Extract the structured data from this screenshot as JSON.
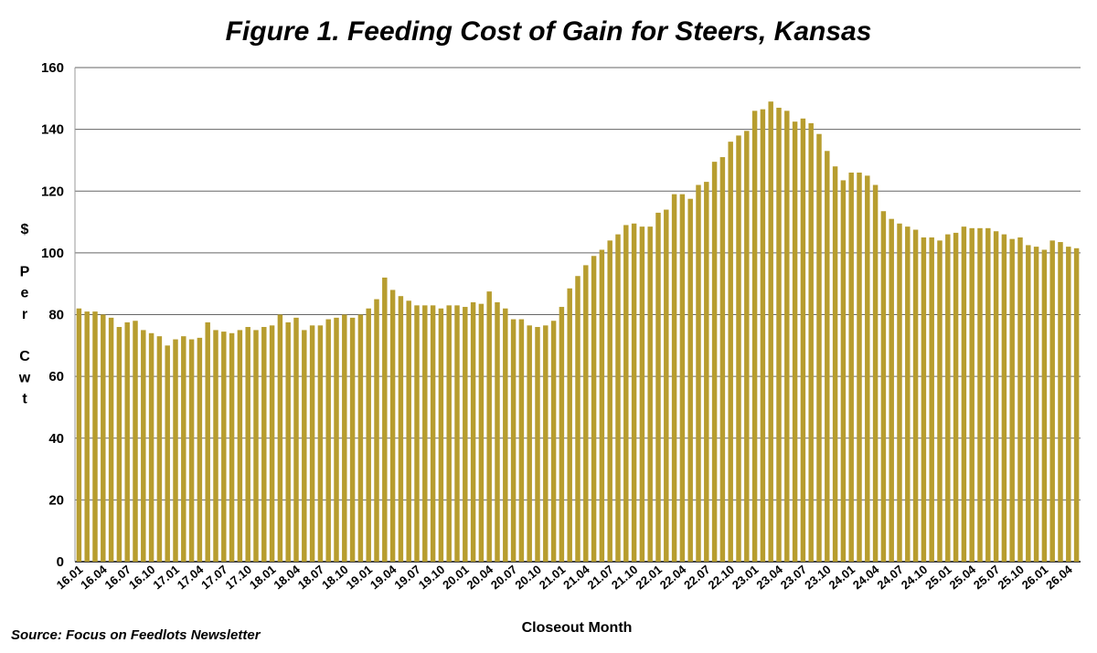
{
  "chart_data": {
    "type": "bar",
    "title": "Figure 1.  Feeding Cost of Gain for Steers, Kansas",
    "xlabel": "Closeout Month",
    "ylabel": "$ Per Cwt",
    "ylabel_lines": [
      "$",
      "",
      "P",
      "e",
      "r",
      "",
      "C",
      "w",
      "t"
    ],
    "source": "Source:  Focus on Feedlots Newsletter",
    "ylim": [
      0,
      160
    ],
    "yticks": [
      0,
      20,
      40,
      60,
      80,
      100,
      120,
      140,
      160
    ],
    "grid": true,
    "bar_color": "#b79d2f",
    "tick_labels": [
      "16.01",
      "16.04",
      "16.07",
      "16.10",
      "17.01",
      "17.04",
      "17.07",
      "17.10",
      "18.01",
      "18.04",
      "18.07",
      "18.10",
      "19.01",
      "19.04",
      "19.07",
      "19.10",
      "20.01",
      "20.04",
      "20.07",
      "20.10",
      "21.01",
      "21.04",
      "21.07",
      "21.10",
      "22.01",
      "22.04",
      "22.07",
      "22.10",
      "23.01",
      "23.04",
      "23.07",
      "23.10",
      "24.01",
      "24.04",
      "24.07",
      "24.10",
      "25.01",
      "25.04",
      "25.07",
      "25.10",
      "26.01",
      "26.04"
    ],
    "tick_every": 3,
    "values": [
      82,
      81,
      81,
      80,
      79,
      76,
      77.5,
      78,
      75,
      74,
      73,
      70,
      72,
      73,
      72,
      72.5,
      77.5,
      75,
      74.5,
      74,
      75,
      76,
      75,
      76,
      76.5,
      80,
      77.5,
      79,
      75,
      76.5,
      76.5,
      78.5,
      79,
      80,
      79,
      80,
      82,
      85,
      92,
      88,
      86,
      84.5,
      83,
      83,
      83,
      82,
      83,
      83,
      82.5,
      84,
      83.5,
      87.5,
      84,
      82,
      78.5,
      78.5,
      76.5,
      76,
      76.5,
      78,
      82.5,
      88.5,
      92.5,
      96,
      99,
      101,
      104,
      106,
      109,
      109.5,
      108.5,
      108.5,
      113,
      114,
      119,
      119,
      117.5,
      122,
      123,
      129.5,
      131,
      136,
      138,
      139.5,
      146,
      146.5,
      149,
      147,
      146,
      142.5,
      143.5,
      142,
      138.5,
      133,
      128,
      123.5,
      126,
      126,
      125,
      122,
      113.5,
      111,
      109.5,
      108.5,
      107.5,
      105,
      105,
      104,
      106,
      106.5,
      108.5,
      108,
      108,
      108,
      107,
      106,
      104.5,
      105,
      102.5,
      102,
      101,
      104,
      103.5,
      102,
      101.5
    ]
  }
}
